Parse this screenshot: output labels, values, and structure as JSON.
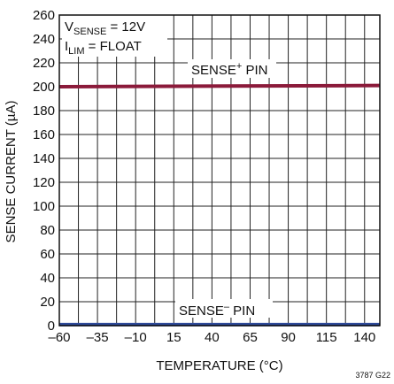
{
  "chart_data": {
    "type": "line",
    "xlabel": "TEMPERATURE (°C)",
    "ylabel": "SENSE CURRENT (µA)",
    "xlim": [
      -60,
      150
    ],
    "ylim": [
      0,
      260
    ],
    "xticks": [
      -60,
      -35,
      -10,
      15,
      40,
      65,
      90,
      115,
      140
    ],
    "xtick_labels": [
      "–60",
      "–35",
      "–10",
      "15",
      "40",
      "65",
      "90",
      "115",
      "140"
    ],
    "yticks": [
      0,
      20,
      40,
      60,
      80,
      100,
      120,
      140,
      160,
      180,
      200,
      220,
      240,
      260
    ],
    "xgrid_step": 12.5,
    "grid": true,
    "conditions": {
      "vsense_base": "V",
      "vsense_sub": "SENSE",
      "vsense_value": " = 12V",
      "ilim_base": "I",
      "ilim_sub": "LIM",
      "ilim_value": " = FLOAT"
    },
    "series": [
      {
        "name": "SENSE+ PIN",
        "label_base": "SENSE",
        "label_sup": "+",
        "label_tail": " PIN",
        "color": "#8b1a3a",
        "x": [
          -60,
          150
        ],
        "y": [
          200,
          201
        ]
      },
      {
        "name": "SENSE– PIN",
        "label_base": "SENSE",
        "label_sup": "–",
        "label_tail": " PIN",
        "color": "#2e4a9a",
        "x": [
          -60,
          150
        ],
        "y": [
          0.8,
          0.8
        ]
      }
    ],
    "figure_id": "3787 G22"
  }
}
